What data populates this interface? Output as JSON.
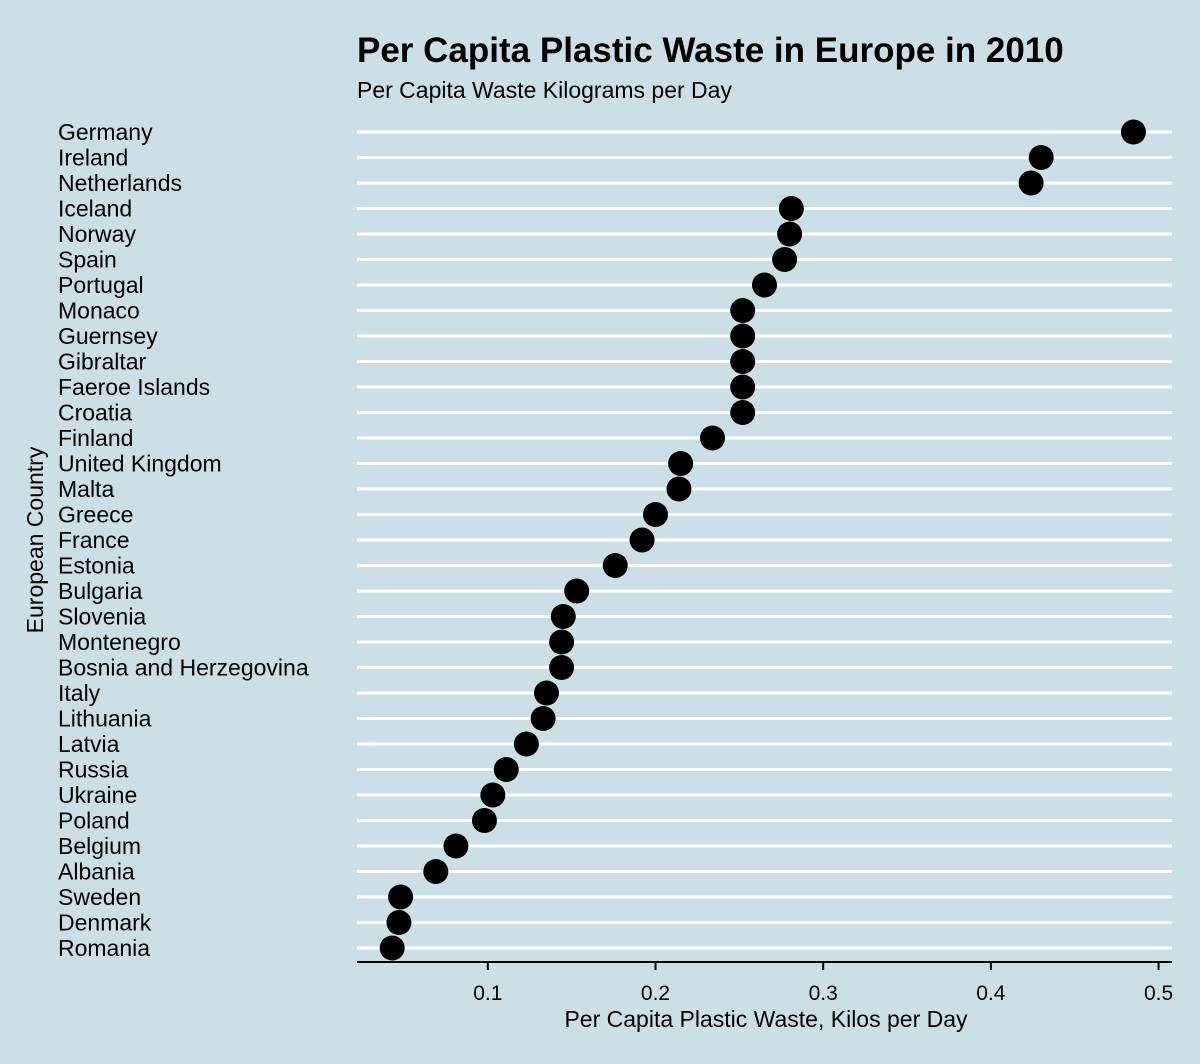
{
  "chart_data": {
    "type": "scatter",
    "title": "Per Capita Plastic Waste in Europe in 2010",
    "subtitle": "Per Capita Waste Kilograms per Day",
    "xlabel": "Per Capita Plastic Waste, Kilos per Day",
    "ylabel": "European Country",
    "xlim": [
      0.022,
      0.508
    ],
    "xticks": [
      0.1,
      0.2,
      0.3,
      0.4,
      0.5
    ],
    "xtick_labels": [
      "0.1",
      "0.2",
      "0.3",
      "0.4",
      "0.5"
    ],
    "grid": "horizontal",
    "point_color": "#000000",
    "gridline_color": "#ffffff",
    "background_color": "#cddfe6",
    "categories": [
      "Germany",
      "Ireland",
      "Netherlands",
      "Iceland",
      "Norway",
      "Spain",
      "Portugal",
      "Monaco",
      "Guernsey",
      "Gibraltar",
      "Faeroe Islands",
      "Croatia",
      "Finland",
      "United Kingdom",
      "Malta",
      "Greece",
      "France",
      "Estonia",
      "Bulgaria",
      "Slovenia",
      "Montenegro",
      "Bosnia and Herzegovina",
      "Italy",
      "Lithuania",
      "Latvia",
      "Russia",
      "Ukraine",
      "Poland",
      "Belgium",
      "Albania",
      "Sweden",
      "Denmark",
      "Romania"
    ],
    "values": [
      0.485,
      0.43,
      0.424,
      0.281,
      0.28,
      0.277,
      0.265,
      0.252,
      0.252,
      0.252,
      0.252,
      0.252,
      0.234,
      0.215,
      0.214,
      0.2,
      0.192,
      0.176,
      0.153,
      0.145,
      0.144,
      0.144,
      0.135,
      0.133,
      0.123,
      0.111,
      0.103,
      0.098,
      0.081,
      0.069,
      0.048,
      0.047,
      0.043
    ]
  }
}
